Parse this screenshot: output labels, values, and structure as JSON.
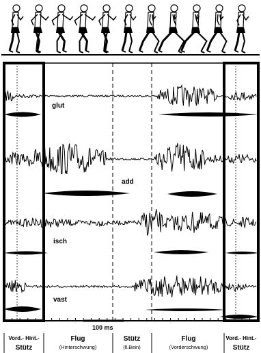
{
  "muscles": [
    {
      "key": "glut",
      "label": "glut"
    },
    {
      "key": "add",
      "label": "add"
    },
    {
      "key": "isch",
      "label": "isch"
    },
    {
      "key": "vast",
      "label": "vast"
    }
  ],
  "scale_bar": {
    "label": "100 ms"
  },
  "phases": [
    {
      "main": "Vord.- Hint.-",
      "sub": "Stütz"
    },
    {
      "main": "Flug",
      "sub": "(Hinterschwung)"
    },
    {
      "main": "Stütz",
      "sub": "(ll.Bein)"
    },
    {
      "main": "Flug",
      "sub": "(Vorderschwung)"
    },
    {
      "main": "Vord.- Hint.-",
      "sub": "Stütz"
    }
  ],
  "runner_sequence": {
    "figure_count": 11
  }
}
